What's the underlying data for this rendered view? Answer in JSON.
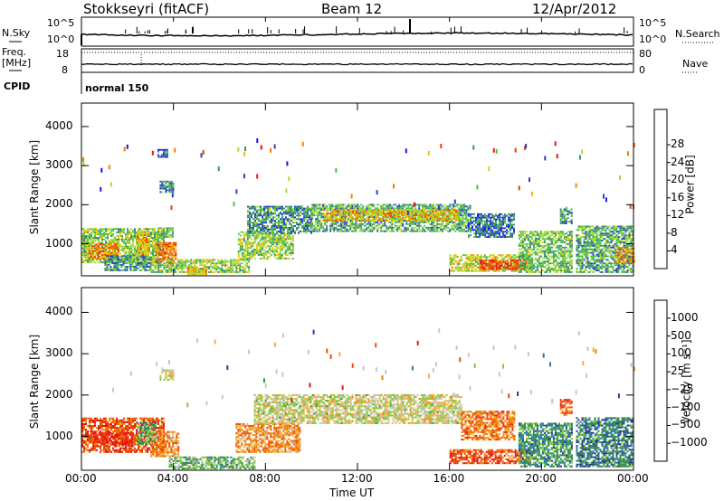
{
  "header": {
    "station": "Stokkseyri (fitACF)",
    "beam": "Beam 12",
    "date": "12/Apr/2012"
  },
  "strips": {
    "nsky": {
      "label": "N.Sky",
      "ticks": [
        "10^5",
        "10^0"
      ]
    },
    "nsearch": {
      "label": "N.Search",
      "ticks": [
        "10^5",
        "10^0"
      ]
    },
    "freq": {
      "label_line1": "Freq.",
      "label_line2": "[MHz]",
      "ticks": [
        "18",
        "8"
      ]
    },
    "nave": {
      "label": "Nave",
      "ticks": [
        "80",
        "0"
      ]
    },
    "cpid": {
      "label": "CPID",
      "mode": "normal 150"
    }
  },
  "colors": {
    "power": [
      "#1414e6",
      "#2a3fc8",
      "#3c8a78",
      "#4cc04c",
      "#a8e030",
      "#f0c000",
      "#f08000",
      "#f04000",
      "#e61414"
    ],
    "velocity": [
      "#e61414",
      "#f04a00",
      "#f08000",
      "#f0b040",
      "#c8c8c0",
      "#7ccc3c",
      "#3c9040",
      "#2a7a9a",
      "#2838a0"
    ]
  },
  "chart_data": [
    {
      "type": "heatmap",
      "name": "power",
      "xlabel": "Time UT",
      "ylabel": "Slant Range [km]",
      "x_ticks": [
        "00:00",
        "04:00",
        "08:00",
        "12:00",
        "16:00",
        "20:00",
        "00:00"
      ],
      "y_ticks": [
        1000,
        2000,
        3000,
        4000
      ],
      "xlim_hours": [
        0,
        24
      ],
      "ylim_km": [
        180,
        4600
      ],
      "colorbar_label": "Power [dB]",
      "colorbar_ticks": [
        4,
        8,
        12,
        16,
        20,
        24,
        28
      ],
      "colorbar_range": [
        0,
        32
      ],
      "regions": [
        {
          "t0": 0.0,
          "t1": 3.6,
          "r0": 500,
          "r1": 1400,
          "level": 0.45
        },
        {
          "t0": 0.3,
          "t1": 1.6,
          "r0": 600,
          "r1": 1000,
          "level": 0.72
        },
        {
          "t0": 1.0,
          "t1": 3.0,
          "r0": 300,
          "r1": 700,
          "level": 0.3
        },
        {
          "t0": 2.4,
          "t1": 2.9,
          "r0": 700,
          "r1": 1300,
          "level": 0.62
        },
        {
          "t0": 3.2,
          "t1": 4.1,
          "r0": 500,
          "r1": 1000,
          "level": 0.75
        },
        {
          "t0": 3.3,
          "t1": 4.0,
          "r0": 1150,
          "r1": 1400,
          "level": 0.4
        },
        {
          "t0": 3.4,
          "t1": 4.0,
          "r0": 2300,
          "r1": 2600,
          "level": 0.3
        },
        {
          "t0": 3.3,
          "t1": 3.7,
          "r0": 3200,
          "r1": 3400,
          "level": 0.2
        },
        {
          "t0": 3.0,
          "t1": 7.3,
          "r0": 250,
          "r1": 600,
          "level": 0.45
        },
        {
          "t0": 4.6,
          "t1": 5.4,
          "r0": 200,
          "r1": 400,
          "level": 0.65
        },
        {
          "t0": 6.8,
          "t1": 9.2,
          "r0": 600,
          "r1": 1300,
          "level": 0.45
        },
        {
          "t0": 7.2,
          "t1": 10.0,
          "r0": 1250,
          "r1": 1950,
          "level": 0.3
        },
        {
          "t0": 10.0,
          "t1": 16.8,
          "r0": 1300,
          "r1": 2000,
          "level": 0.35
        },
        {
          "t0": 10.5,
          "t1": 16.4,
          "r0": 1580,
          "r1": 1870,
          "level": 0.62
        },
        {
          "t0": 16.0,
          "t1": 19.5,
          "r0": 280,
          "r1": 700,
          "level": 0.55
        },
        {
          "t0": 17.3,
          "t1": 19.3,
          "r0": 330,
          "r1": 580,
          "level": 0.9
        },
        {
          "t0": 16.8,
          "t1": 18.8,
          "r0": 1150,
          "r1": 1750,
          "level": 0.25
        },
        {
          "t0": 19.0,
          "t1": 21.3,
          "r0": 250,
          "r1": 1300,
          "level": 0.4
        },
        {
          "t0": 20.8,
          "t1": 21.3,
          "r0": 1500,
          "r1": 1900,
          "level": 0.3
        },
        {
          "t0": 21.5,
          "t1": 24.0,
          "r0": 250,
          "r1": 1450,
          "level": 0.35
        },
        {
          "t0": 23.2,
          "t1": 24.0,
          "r0": 500,
          "r1": 900,
          "level": 0.7
        }
      ]
    },
    {
      "type": "heatmap",
      "name": "velocity",
      "xlabel": "Time UT",
      "ylabel": "Slant Range [km]",
      "x_ticks": [
        "00:00",
        "04:00",
        "08:00",
        "12:00",
        "16:00",
        "20:00",
        "00:00"
      ],
      "y_ticks": [
        1000,
        2000,
        3000,
        4000
      ],
      "xlim_hours": [
        0,
        24
      ],
      "ylim_km": [
        180,
        4600
      ],
      "colorbar_label": "Velocity [m s⁻¹]",
      "colorbar_ticks": [
        "-1000",
        "-500",
        "-100",
        "-25",
        "25",
        "100",
        "500",
        "1000"
      ],
      "regions": [
        {
          "t0": 0.0,
          "t1": 3.6,
          "r0": 600,
          "r1": 1450,
          "level": 0.18
        },
        {
          "t0": 0.5,
          "t1": 2.2,
          "r0": 750,
          "r1": 1100,
          "level": 0.05
        },
        {
          "t0": 2.4,
          "t1": 3.2,
          "r0": 800,
          "r1": 1300,
          "level": 0.7
        },
        {
          "t0": 3.0,
          "t1": 4.2,
          "r0": 500,
          "r1": 1100,
          "level": 0.3
        },
        {
          "t0": 3.4,
          "t1": 4.0,
          "r0": 2350,
          "r1": 2600,
          "level": 0.5
        },
        {
          "t0": 3.8,
          "t1": 7.5,
          "r0": 200,
          "r1": 500,
          "level": 0.65
        },
        {
          "t0": 6.7,
          "t1": 9.5,
          "r0": 600,
          "r1": 1300,
          "level": 0.3
        },
        {
          "t0": 7.5,
          "t1": 16.5,
          "r0": 1300,
          "r1": 2000,
          "level": 0.5
        },
        {
          "t0": 16.0,
          "t1": 19.5,
          "r0": 330,
          "r1": 650,
          "level": 0.15
        },
        {
          "t0": 16.5,
          "t1": 18.8,
          "r0": 900,
          "r1": 1600,
          "level": 0.25
        },
        {
          "t0": 19.0,
          "t1": 21.3,
          "r0": 250,
          "r1": 1300,
          "level": 0.75
        },
        {
          "t0": 20.8,
          "t1": 21.3,
          "r0": 1500,
          "r1": 1900,
          "level": 0.2
        },
        {
          "t0": 21.5,
          "t1": 24.0,
          "r0": 250,
          "r1": 1450,
          "level": 0.8
        }
      ]
    }
  ]
}
